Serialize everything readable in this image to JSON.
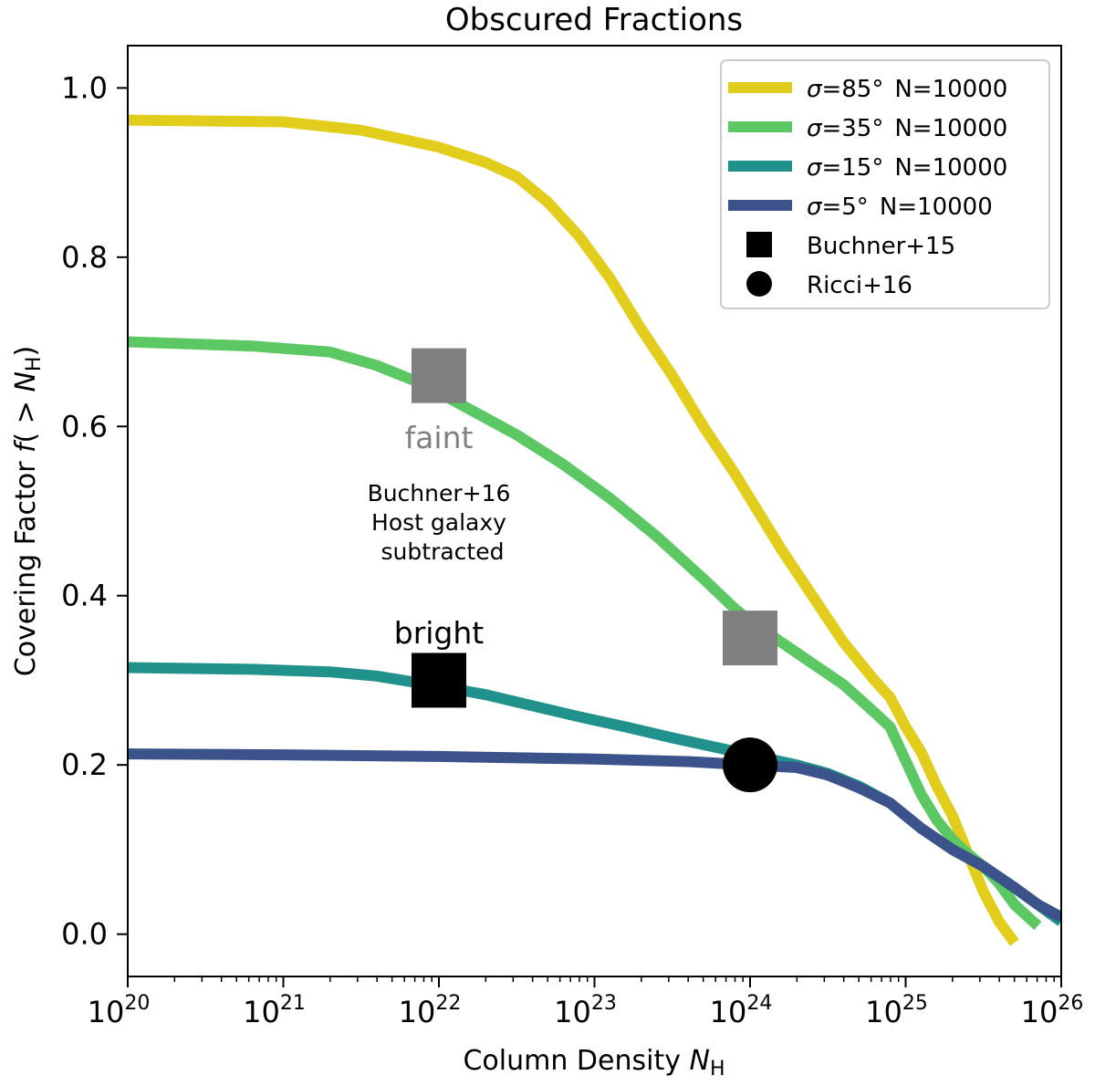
{
  "chart_data": {
    "type": "line",
    "title": "Obscured Fractions",
    "xlabel": {
      "main": "Column Density ",
      "italic": "N",
      "sub": "H"
    },
    "ylabel": {
      "main": "Covering Factor ",
      "italic": "f",
      "paren_open": "( > ",
      "italic2": "N",
      "sub": "H",
      "paren_close": ")"
    },
    "xscale": "log",
    "xlim_log10": [
      20,
      26
    ],
    "ylim": [
      -0.05,
      1.05
    ],
    "x_ticks": [
      {
        "exp": 20,
        "base": "10",
        "power": "20"
      },
      {
        "exp": 21,
        "base": "10",
        "power": "21"
      },
      {
        "exp": 22,
        "base": "10",
        "power": "22"
      },
      {
        "exp": 23,
        "base": "10",
        "power": "23"
      },
      {
        "exp": 24,
        "base": "10",
        "power": "24"
      },
      {
        "exp": 25,
        "base": "10",
        "power": "25"
      },
      {
        "exp": 26,
        "base": "10",
        "power": "26"
      }
    ],
    "y_ticks": [
      {
        "value": 0.0,
        "label": "0.0"
      },
      {
        "value": 0.2,
        "label": "0.2"
      },
      {
        "value": 0.4,
        "label": "0.4"
      },
      {
        "value": 0.6,
        "label": "0.6"
      },
      {
        "value": 0.8,
        "label": "0.8"
      },
      {
        "value": 1.0,
        "label": "1.0"
      }
    ],
    "series": [
      {
        "name": "σ=85°",
        "legend_sigma": "σ",
        "legend_deg": "=85°",
        "legend_n": "N=10000",
        "color": "#e2cd1c",
        "points": [
          [
            20.0,
            0.962
          ],
          [
            21.0,
            0.96
          ],
          [
            21.5,
            0.95
          ],
          [
            22.0,
            0.93
          ],
          [
            22.3,
            0.912
          ],
          [
            22.5,
            0.895
          ],
          [
            22.7,
            0.865
          ],
          [
            22.9,
            0.825
          ],
          [
            23.1,
            0.775
          ],
          [
            23.3,
            0.715
          ],
          [
            23.5,
            0.66
          ],
          [
            23.7,
            0.6
          ],
          [
            23.9,
            0.545
          ],
          [
            24.0,
            0.515
          ],
          [
            24.2,
            0.455
          ],
          [
            24.4,
            0.4
          ],
          [
            24.6,
            0.345
          ],
          [
            24.8,
            0.3
          ],
          [
            24.9,
            0.28
          ],
          [
            25.0,
            0.245
          ],
          [
            25.1,
            0.215
          ],
          [
            25.2,
            0.175
          ],
          [
            25.3,
            0.14
          ],
          [
            25.4,
            0.095
          ],
          [
            25.5,
            0.05
          ],
          [
            25.6,
            0.015
          ],
          [
            25.7,
            -0.01
          ]
        ]
      },
      {
        "name": "σ=35°",
        "legend_sigma": "σ",
        "legend_deg": "=35°",
        "legend_n": "N=10000",
        "color": "#5bc863",
        "points": [
          [
            20.0,
            0.7
          ],
          [
            20.8,
            0.695
          ],
          [
            21.3,
            0.688
          ],
          [
            21.6,
            0.672
          ],
          [
            21.9,
            0.65
          ],
          [
            22.2,
            0.62
          ],
          [
            22.5,
            0.59
          ],
          [
            22.8,
            0.555
          ],
          [
            23.1,
            0.515
          ],
          [
            23.4,
            0.47
          ],
          [
            23.7,
            0.42
          ],
          [
            23.9,
            0.385
          ],
          [
            24.0,
            0.37
          ],
          [
            24.2,
            0.345
          ],
          [
            24.4,
            0.32
          ],
          [
            24.6,
            0.295
          ],
          [
            24.8,
            0.262
          ],
          [
            24.9,
            0.245
          ],
          [
            25.0,
            0.205
          ],
          [
            25.1,
            0.165
          ],
          [
            25.2,
            0.135
          ],
          [
            25.3,
            0.112
          ],
          [
            25.4,
            0.095
          ],
          [
            25.5,
            0.08
          ],
          [
            25.6,
            0.06
          ],
          [
            25.7,
            0.035
          ],
          [
            25.8,
            0.018
          ],
          [
            25.85,
            0.01
          ]
        ]
      },
      {
        "name": "σ=15°",
        "legend_sigma": "σ",
        "legend_deg": "=15°",
        "legend_n": "N=10000",
        "color": "#21918c",
        "points": [
          [
            20.0,
            0.315
          ],
          [
            20.8,
            0.313
          ],
          [
            21.3,
            0.31
          ],
          [
            21.6,
            0.305
          ],
          [
            22.0,
            0.293
          ],
          [
            22.3,
            0.283
          ],
          [
            22.6,
            0.27
          ],
          [
            22.9,
            0.257
          ],
          [
            23.2,
            0.245
          ],
          [
            23.5,
            0.232
          ],
          [
            23.8,
            0.22
          ],
          [
            24.0,
            0.212
          ],
          [
            24.3,
            0.2
          ],
          [
            24.5,
            0.19
          ],
          [
            24.7,
            0.175
          ],
          [
            24.9,
            0.155
          ],
          [
            25.1,
            0.125
          ],
          [
            25.3,
            0.1
          ],
          [
            25.5,
            0.08
          ],
          [
            25.7,
            0.055
          ],
          [
            25.85,
            0.035
          ],
          [
            26.0,
            0.015
          ]
        ]
      },
      {
        "name": "σ=5°",
        "legend_sigma": "σ",
        "legend_deg": "=5°",
        "legend_n": "N=10000",
        "color": "#3b528b",
        "points": [
          [
            20.0,
            0.213
          ],
          [
            21.0,
            0.212
          ],
          [
            22.0,
            0.21
          ],
          [
            23.0,
            0.207
          ],
          [
            23.6,
            0.204
          ],
          [
            24.0,
            0.2
          ],
          [
            24.3,
            0.197
          ],
          [
            24.5,
            0.188
          ],
          [
            24.7,
            0.173
          ],
          [
            24.9,
            0.155
          ],
          [
            25.1,
            0.125
          ],
          [
            25.3,
            0.1
          ],
          [
            25.5,
            0.08
          ],
          [
            25.7,
            0.055
          ],
          [
            25.85,
            0.035
          ],
          [
            26.0,
            0.02
          ]
        ]
      }
    ],
    "markers": [
      {
        "name": "Buchner+15 bright",
        "shape": "square",
        "color": "#000000",
        "x_log10": 22,
        "y": 0.3
      },
      {
        "name": "Buchner+16 faint",
        "shape": "square",
        "color": "#808080",
        "x_log10": 22,
        "y": 0.66
      },
      {
        "name": "Buchner+16 faint",
        "shape": "square",
        "color": "#808080",
        "x_log10": 24,
        "y": 0.35
      },
      {
        "name": "Ricci+16",
        "shape": "circle",
        "color": "#000000",
        "x_log10": 24,
        "y": 0.2
      }
    ],
    "legend_markers": [
      {
        "label": "Buchner+15",
        "shape": "square"
      },
      {
        "label": "Ricci+16",
        "shape": "circle"
      }
    ],
    "legend_placement": "top-right",
    "annotations": {
      "bright": "bright",
      "faint": "faint",
      "host_line1": "Buchner+16",
      "host_line2": "Host galaxy",
      "host_line3": "subtracted"
    }
  }
}
